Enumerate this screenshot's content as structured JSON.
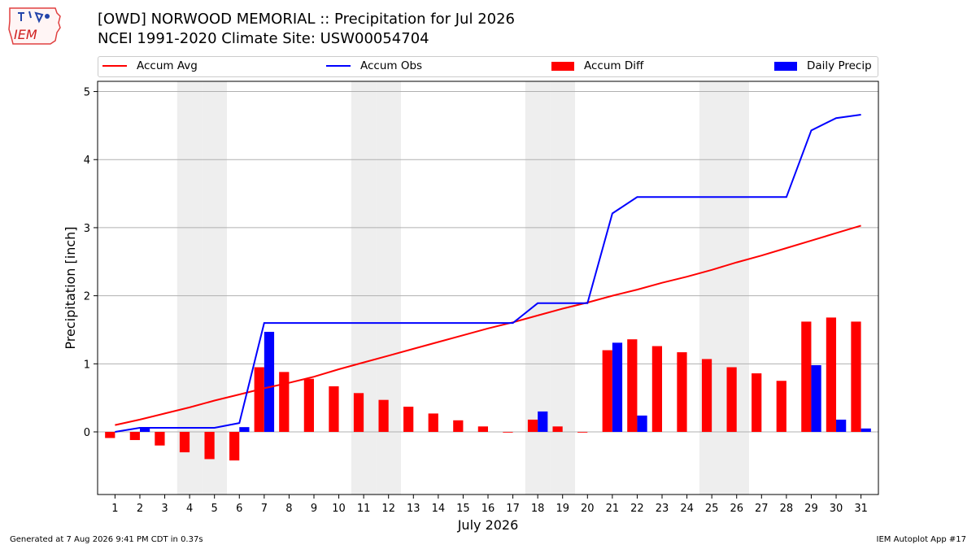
{
  "header": {
    "logo_text": "IEM",
    "title_line1": "[OWD] NORWOOD MEMORIAL :: Precipitation for Jul 2026",
    "title_line2": "NCEI 1991-2020 Climate Site: USW00054704"
  },
  "footer": {
    "generated": "Generated at 7 Aug 2026 9:41 PM CDT in 0.37s",
    "app": "IEM Autoplot App #17"
  },
  "colors": {
    "avg": "#ff0000",
    "obs": "#0000ff",
    "diff": "#ff0000",
    "daily": "#0000ff",
    "weekend_shade": "#eeeeee",
    "grid": "#b0b0b0"
  },
  "chart_data": {
    "type": "bar",
    "xlabel": "July 2026",
    "ylabel": "Precipitation [inch]",
    "ylim": [
      -0.92,
      5.15
    ],
    "yticks": [
      0,
      1,
      2,
      3,
      4,
      5
    ],
    "grid": true,
    "legend_position": "top",
    "categories": [
      "1",
      "2",
      "3",
      "4",
      "5",
      "6",
      "7",
      "8",
      "9",
      "10",
      "11",
      "12",
      "13",
      "14",
      "15",
      "16",
      "17",
      "18",
      "19",
      "20",
      "21",
      "22",
      "23",
      "24",
      "25",
      "26",
      "27",
      "28",
      "29",
      "30",
      "31"
    ],
    "shaded_days": [
      4,
      5,
      11,
      12,
      18,
      19,
      25,
      26
    ],
    "series": [
      {
        "name": "Accum Avg",
        "kind": "line",
        "values": [
          0.1,
          0.18,
          0.27,
          0.36,
          0.46,
          0.55,
          0.64,
          0.72,
          0.81,
          0.92,
          1.02,
          1.12,
          1.22,
          1.32,
          1.42,
          1.52,
          1.61,
          1.71,
          1.81,
          1.9,
          2.0,
          2.09,
          2.19,
          2.28,
          2.38,
          2.49,
          2.59,
          2.7,
          2.81,
          2.92,
          3.03
        ]
      },
      {
        "name": "Accum Obs",
        "kind": "line",
        "values": [
          0.0,
          0.06,
          0.06,
          0.06,
          0.06,
          0.13,
          1.6,
          1.6,
          1.6,
          1.6,
          1.6,
          1.6,
          1.6,
          1.6,
          1.6,
          1.6,
          1.6,
          1.89,
          1.89,
          1.89,
          3.21,
          3.45,
          3.45,
          3.45,
          3.45,
          3.45,
          3.45,
          3.45,
          4.43,
          4.61,
          4.66
        ]
      },
      {
        "name": "Accum Diff",
        "kind": "bar",
        "values": [
          -0.09,
          -0.12,
          -0.2,
          -0.3,
          -0.4,
          -0.42,
          0.95,
          0.88,
          0.78,
          0.67,
          0.57,
          0.47,
          0.37,
          0.27,
          0.17,
          0.08,
          -0.01,
          0.18,
          0.08,
          -0.01,
          1.2,
          1.36,
          1.26,
          1.17,
          1.07,
          0.95,
          0.86,
          0.75,
          1.62,
          1.68,
          1.62
        ]
      },
      {
        "name": "Daily Precip",
        "kind": "bar",
        "values": [
          0.0,
          0.06,
          0.0,
          0.0,
          0.0,
          0.07,
          1.47,
          0.0,
          0.0,
          0.0,
          0.0,
          0.0,
          0.0,
          0.0,
          0.0,
          0.0,
          0.0,
          0.3,
          0.0,
          0.0,
          1.31,
          0.24,
          0.0,
          0.0,
          0.0,
          0.0,
          0.0,
          0.0,
          0.98,
          0.18,
          0.05
        ]
      }
    ]
  }
}
